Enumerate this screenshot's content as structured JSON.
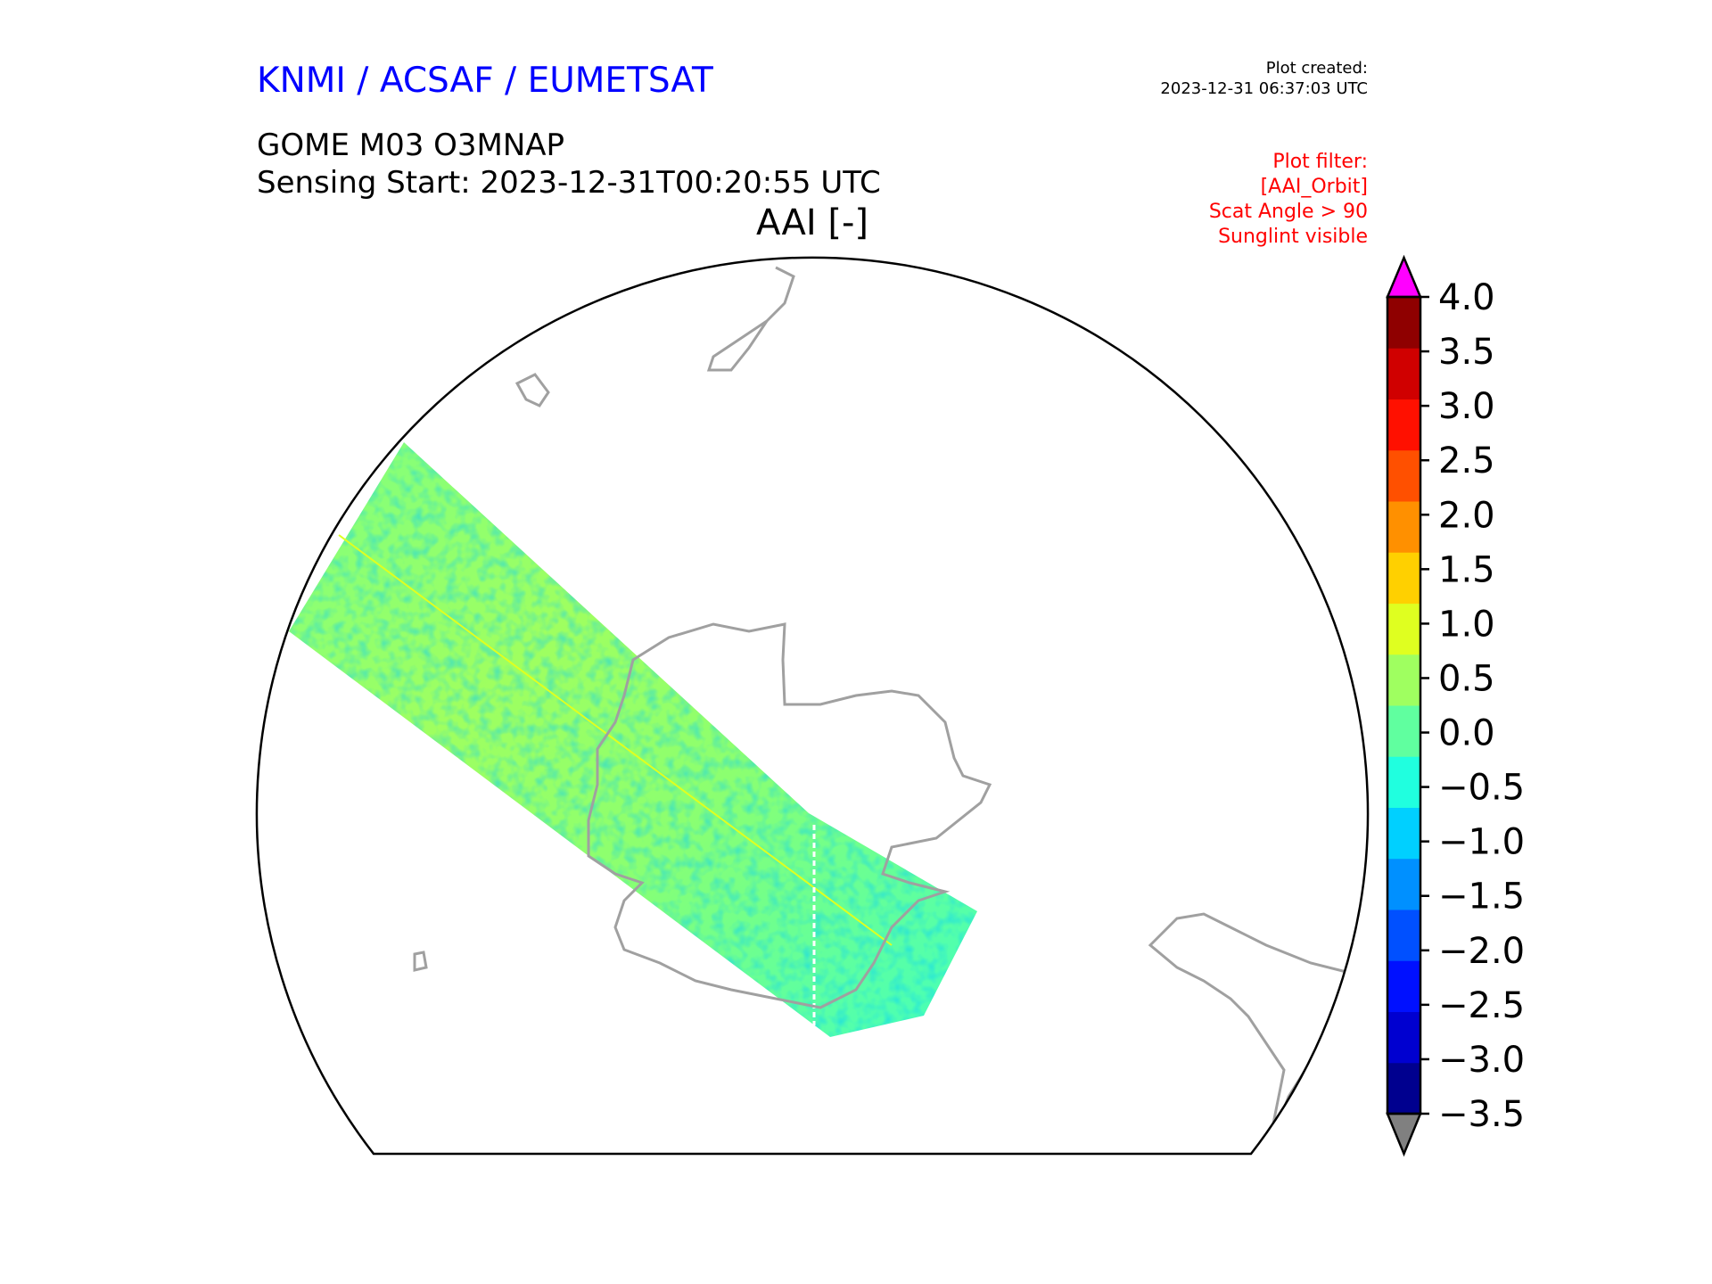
{
  "header": {
    "agency": "KNMI / ACSAF / EUMETSAT",
    "product": "GOME M03 O3MNAP",
    "sensing_start": "Sensing Start: 2023-12-31T00:20:55 UTC",
    "plot_created_label": "Plot created:",
    "plot_created_value": "2023-12-31 06:37:03 UTC",
    "filter_lines": [
      "Plot filter:",
      "[AAI_Orbit]",
      "Scat Angle > 90",
      "Sunglint visible"
    ]
  },
  "chart_data": {
    "type": "heatmap",
    "title": "AAI [-]",
    "projection": "polar map (Southern hemisphere)",
    "colorbar": {
      "min": -3.5,
      "max": 4.0,
      "step": 0.5,
      "ticks": [
        "4.0",
        "3.5",
        "3.0",
        "2.5",
        "2.0",
        "1.5",
        "1.0",
        "0.5",
        "0.0",
        "−0.5",
        "−1.0",
        "−1.5",
        "−2.0",
        "−2.5",
        "−3.0",
        "−3.5"
      ],
      "tick_values": [
        4.0,
        3.5,
        3.0,
        2.5,
        2.0,
        1.5,
        1.0,
        0.5,
        0.0,
        -0.5,
        -1.0,
        -1.5,
        -2.0,
        -2.5,
        -3.0,
        -3.5
      ],
      "colors": [
        "#00008f",
        "#0000d0",
        "#0010ff",
        "#0050ff",
        "#0090ff",
        "#00d0ff",
        "#20ffdf",
        "#60ff9f",
        "#9fff60",
        "#dfff20",
        "#ffd000",
        "#ff9000",
        "#ff5000",
        "#ff1000",
        "#d00000",
        "#8f0000"
      ],
      "extend_over_color": "#ff00ff",
      "extend_under_color": "#808080"
    },
    "swath_typical_value_range": [
      -1.0,
      1.0
    ],
    "coastline_color": "#a0a0a0"
  }
}
